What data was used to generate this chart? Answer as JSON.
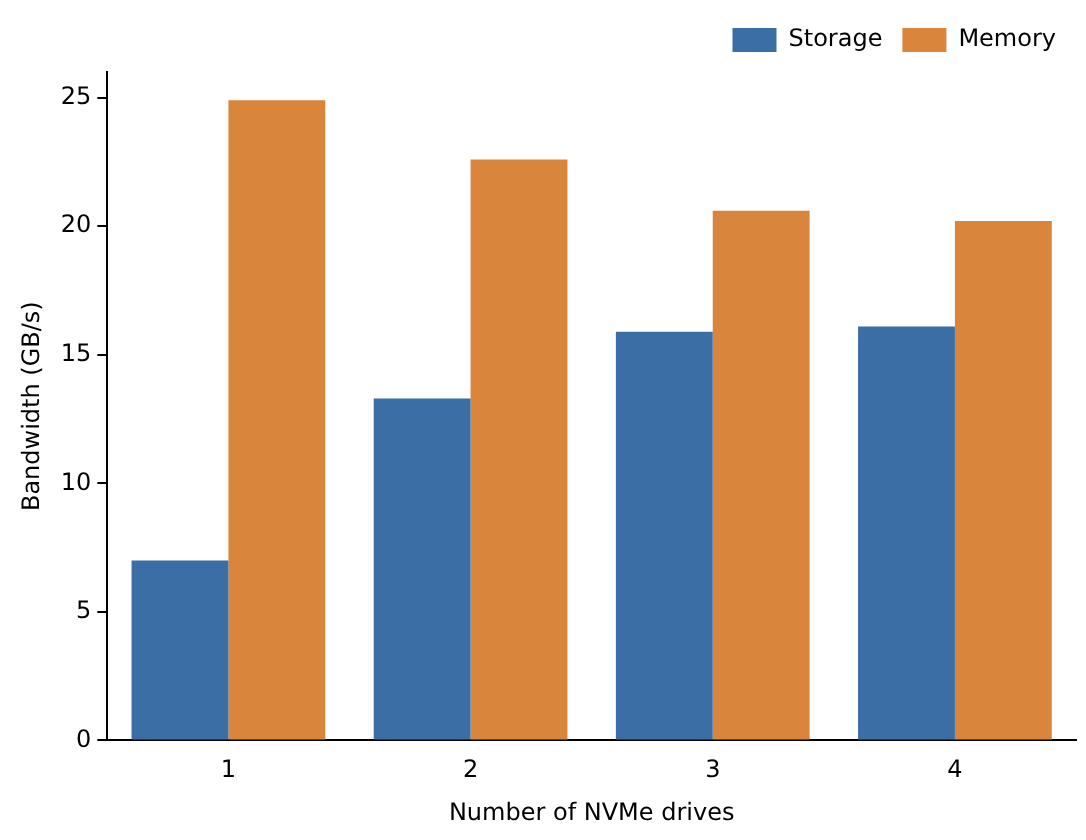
{
  "chart_data": {
    "type": "bar",
    "xlabel": "Number of NVMe drives",
    "ylabel": "Bandwidth (GB/s)",
    "categories": [
      "1",
      "2",
      "3",
      "4"
    ],
    "series": [
      {
        "name": "Storage",
        "color": "#3b6ea5",
        "values": [
          7.0,
          13.3,
          15.9,
          16.1
        ]
      },
      {
        "name": "Memory",
        "color": "#d9853b",
        "values": [
          24.9,
          22.6,
          20.6,
          20.2
        ]
      }
    ],
    "ylim": [
      0,
      26
    ],
    "yticks": [
      0,
      5,
      10,
      15,
      20,
      25
    ],
    "grid": false,
    "legend": "top right"
  }
}
